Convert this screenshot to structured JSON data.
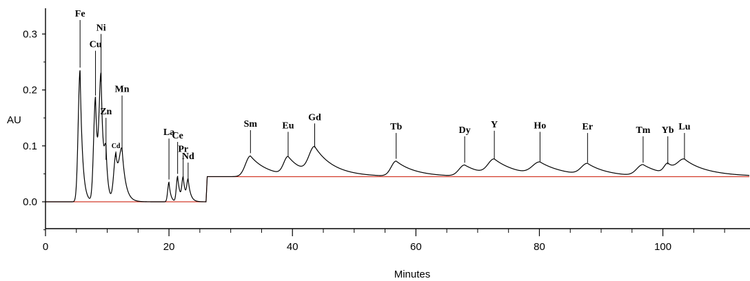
{
  "chart_data": {
    "type": "line",
    "title": "",
    "xlabel": "Minutes",
    "ylabel": "AU",
    "xlim": [
      0,
      114
    ],
    "ylim": [
      -0.05,
      0.34
    ],
    "x_ticks": [
      0,
      20,
      40,
      60,
      80,
      100
    ],
    "y_ticks": [
      0.0,
      0.1,
      0.2,
      0.3
    ],
    "x_tick_labels": [
      "0",
      "20",
      "40",
      "60",
      "80",
      "100"
    ],
    "y_tick_labels": [
      "0.0",
      "0.1",
      "0.2",
      "0.3"
    ],
    "grid": false,
    "colors": {
      "trace": "#000000",
      "baseline": "#d23a2a"
    },
    "baseline": [
      {
        "x": 0,
        "y": 0.0
      },
      {
        "x": 26.0,
        "y": 0.0
      },
      {
        "x": 26.2,
        "y": 0.045
      },
      {
        "x": 114,
        "y": 0.045
      }
    ],
    "peaks": [
      {
        "label": "Fe",
        "time": 5.6,
        "height": 0.235,
        "width": 0.3,
        "tail": 0.4,
        "label_y": 0.33
      },
      {
        "label": "Cu",
        "time": 8.1,
        "height": 0.185,
        "width": 0.3,
        "tail": 0.4,
        "label_y": 0.275
      },
      {
        "label": "Ni",
        "time": 9.0,
        "height": 0.21,
        "width": 0.3,
        "tail": 0.4,
        "label_y": 0.305
      },
      {
        "label": "Zn",
        "time": 9.8,
        "height": 0.07,
        "width": 0.25,
        "tail": 0.3,
        "label_y": 0.155
      },
      {
        "label": "Cd",
        "time": 11.4,
        "height": 0.08,
        "width": 0.35,
        "tail": 0.5,
        "label_y": 0.095
      },
      {
        "label": "Mn",
        "time": 12.4,
        "height": 0.085,
        "width": 0.45,
        "tail": 0.6,
        "label_y": 0.195
      },
      {
        "label": "La",
        "time": 20.0,
        "height": 0.035,
        "width": 0.2,
        "tail": 0.3,
        "label_y": 0.118
      },
      {
        "label": "Ce",
        "time": 21.4,
        "height": 0.045,
        "width": 0.2,
        "tail": 0.4,
        "label_y": 0.112
      },
      {
        "label": "Pr",
        "time": 22.3,
        "height": 0.04,
        "width": 0.2,
        "tail": 0.4,
        "label_y": 0.088
      },
      {
        "label": "Nd",
        "time": 23.1,
        "height": 0.035,
        "width": 0.2,
        "tail": 0.4,
        "label_y": 0.075
      },
      {
        "label": "Sm",
        "time": 33.2,
        "height": 0.037,
        "width": 0.8,
        "tail": 2.8,
        "label_y": 0.133
      },
      {
        "label": "Eu",
        "time": 39.3,
        "height": 0.032,
        "width": 0.7,
        "tail": 2.6,
        "label_y": 0.13
      },
      {
        "label": "Gd",
        "time": 43.6,
        "height": 0.047,
        "width": 0.9,
        "tail": 3.2,
        "label_y": 0.145
      },
      {
        "label": "Tb",
        "time": 56.8,
        "height": 0.027,
        "width": 0.8,
        "tail": 3.2,
        "label_y": 0.128
      },
      {
        "label": "Dy",
        "time": 67.9,
        "height": 0.02,
        "width": 0.9,
        "tail": 3.2,
        "label_y": 0.122
      },
      {
        "label": "Y",
        "time": 72.7,
        "height": 0.027,
        "width": 1.0,
        "tail": 3.8,
        "label_y": 0.132
      },
      {
        "label": "Ho",
        "time": 80.1,
        "height": 0.022,
        "width": 1.2,
        "tail": 4.0,
        "label_y": 0.13
      },
      {
        "label": "Er",
        "time": 87.8,
        "height": 0.02,
        "width": 1.0,
        "tail": 3.2,
        "label_y": 0.128
      },
      {
        "label": "Tm",
        "time": 96.8,
        "height": 0.02,
        "width": 1.0,
        "tail": 3.2,
        "label_y": 0.122
      },
      {
        "label": "Yb",
        "time": 100.8,
        "height": 0.017,
        "width": 0.6,
        "tail": 1.5,
        "label_y": 0.122
      },
      {
        "label": "Lu",
        "time": 103.5,
        "height": 0.026,
        "width": 1.1,
        "tail": 4.2,
        "label_y": 0.128
      }
    ]
  }
}
